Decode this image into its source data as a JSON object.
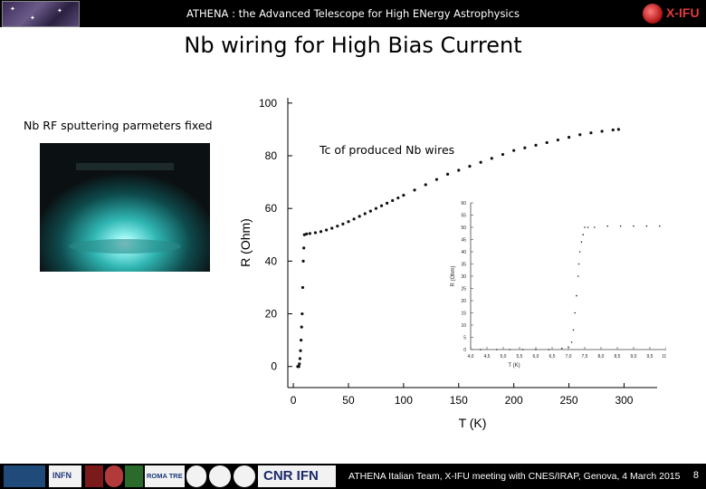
{
  "header": {
    "title": "ATHENA : the Advanced Telescope for High ENergy Astrophysics",
    "right_logo_text": "X-IFU"
  },
  "slide": {
    "title": "Nb wiring for High Bias Current",
    "left_label": "Nb RF sputtering parmeters fixed",
    "chart_label": "Tc of produced Nb wires"
  },
  "footer": {
    "text": "ATHENA Italian Team, X-IFU meeting with CNES/IRAP, Genova, 4 March 2015",
    "page_number": "8",
    "logo_texts": [
      "INFN",
      "ROMA TRE",
      "CNR IFN"
    ]
  },
  "chart_data": [
    {
      "type": "scatter",
      "xlabel": "T (K)",
      "ylabel": "R (Ohm)",
      "xlim": [
        -5,
        330
      ],
      "ylim": [
        -8,
        102
      ],
      "x_ticks": [
        0,
        50,
        100,
        150,
        200,
        250,
        300
      ],
      "y_ticks": [
        0,
        20,
        40,
        60,
        80,
        100
      ],
      "series": [
        {
          "x": [
            4,
            4.5,
            5,
            5.5,
            6,
            6.5,
            7,
            7.5,
            8,
            8.5,
            9,
            9.5,
            10,
            12,
            15,
            20,
            25,
            30,
            35,
            40,
            45,
            50,
            55,
            60,
            65,
            70,
            75,
            80,
            85,
            90,
            95,
            100,
            110,
            120,
            130,
            140,
            150,
            160,
            170,
            180,
            190,
            200,
            210,
            220,
            230,
            240,
            250,
            260,
            270,
            280,
            290,
            295
          ],
          "y": [
            0,
            0,
            0,
            1,
            3,
            6,
            10,
            15,
            20,
            30,
            40,
            45,
            50,
            50.3,
            50.5,
            50.8,
            51.2,
            51.8,
            52.5,
            53.3,
            54.1,
            55,
            56,
            57,
            58,
            59,
            60,
            61,
            62,
            63,
            64,
            65,
            67,
            69,
            71,
            73,
            74.5,
            76,
            77.5,
            79,
            80.5,
            82,
            83,
            84,
            85,
            86,
            87,
            88,
            88.7,
            89.3,
            89.8,
            90
          ]
        }
      ]
    },
    {
      "type": "scatter",
      "xlabel": "T (K)",
      "ylabel": "R (Ohm)",
      "xlim": [
        4.0,
        10.0
      ],
      "ylim": [
        0,
        60
      ],
      "x_ticks": [
        "4,0",
        "4,5",
        "5,0",
        "5,5",
        "6,0",
        "6,5",
        "7,0",
        "7,5",
        "8,0",
        "8,5",
        "9,0",
        "9,5",
        "10,0"
      ],
      "y_ticks": [
        0,
        5,
        10,
        15,
        20,
        25,
        30,
        35,
        40,
        45,
        50,
        55,
        60
      ],
      "series": [
        {
          "x": [
            4.3,
            4.8,
            5.2,
            5.6,
            6.0,
            6.4,
            6.8,
            7.0,
            7.1,
            7.15,
            7.2,
            7.25,
            7.3,
            7.32,
            7.35,
            7.4,
            7.45,
            7.5,
            7.6,
            7.8,
            8.2,
            8.6,
            9.0,
            9.4,
            9.8
          ],
          "y": [
            0,
            0,
            0,
            0,
            0,
            0,
            0.5,
            1,
            3,
            8,
            15,
            22,
            30,
            35,
            40,
            44,
            47,
            50,
            50,
            50,
            50.5,
            50.5,
            50.5,
            50.5,
            50.5
          ]
        }
      ]
    }
  ]
}
